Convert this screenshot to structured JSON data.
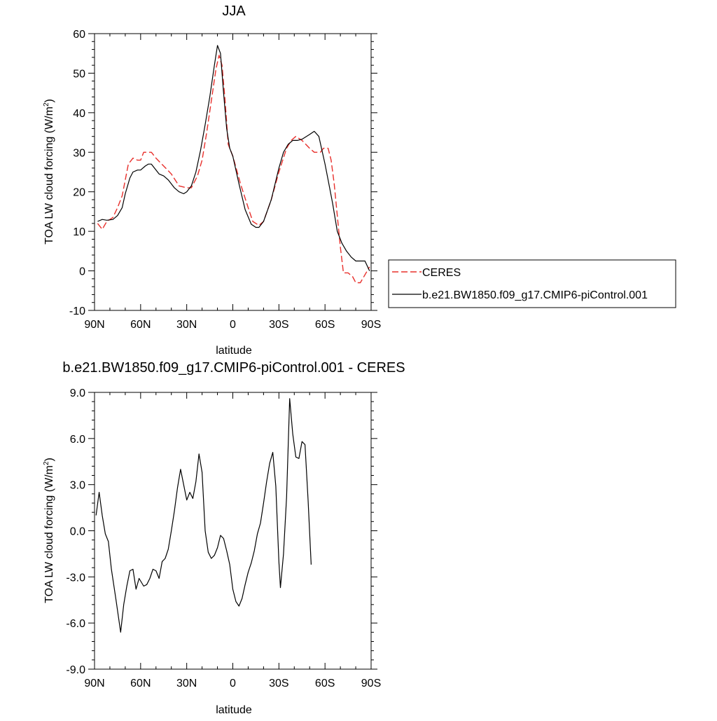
{
  "chart_data": [
    {
      "type": "line",
      "title": "JJA",
      "xlabel": "latitude",
      "ylabel": "TOA LW cloud forcing (W/m",
      "ylabel_sup": "2",
      "ylabel_end": ")",
      "xlim": [
        90,
        -90
      ],
      "ylim": [
        -10,
        60
      ],
      "x_ticks": [
        90,
        60,
        30,
        0,
        -30,
        -60,
        -90
      ],
      "x_tick_labels": [
        "90N",
        "60N",
        "30N",
        "0",
        "30S",
        "60S",
        "90S"
      ],
      "y_ticks": [
        -10,
        0,
        10,
        20,
        30,
        40,
        50,
        60
      ],
      "y_tick_labels": [
        "-10",
        "0",
        "10",
        "20",
        "30",
        "40",
        "50",
        "60"
      ],
      "legend_position": "right",
      "series": [
        {
          "name": "CERES",
          "color": "#e8302c",
          "dash": "dashed",
          "points": [
            [
              88,
              12
            ],
            [
              85,
              10.5
            ],
            [
              82,
              12.5
            ],
            [
              78,
              13.5
            ],
            [
              75,
              16
            ],
            [
              72,
              19
            ],
            [
              68,
              27
            ],
            [
              65,
              28.5
            ],
            [
              62,
              28
            ],
            [
              60,
              28
            ],
            [
              58,
              30
            ],
            [
              55,
              30
            ],
            [
              53,
              30
            ],
            [
              50,
              28.5
            ],
            [
              45,
              26.5
            ],
            [
              40,
              24.5
            ],
            [
              35,
              21.5
            ],
            [
              30,
              21
            ],
            [
              27,
              21
            ],
            [
              23,
              24
            ],
            [
              20,
              28
            ],
            [
              17,
              35
            ],
            [
              14,
              43
            ],
            [
              11,
              51
            ],
            [
              9,
              54.5
            ],
            [
              7,
              52
            ],
            [
              5,
              43
            ],
            [
              3,
              32
            ],
            [
              0,
              29
            ],
            [
              -5,
              22
            ],
            [
              -10,
              16
            ],
            [
              -13,
              12.5
            ],
            [
              -17,
              11.5
            ],
            [
              -20,
              12.5
            ],
            [
              -25,
              18
            ],
            [
              -30,
              25
            ],
            [
              -35,
              31
            ],
            [
              -38,
              33
            ],
            [
              -41,
              34
            ],
            [
              -45,
              33
            ],
            [
              -50,
              31
            ],
            [
              -53,
              30
            ],
            [
              -57,
              30
            ],
            [
              -59,
              31
            ],
            [
              -62,
              31
            ],
            [
              -64,
              28
            ],
            [
              -66,
              22
            ],
            [
              -68,
              14
            ],
            [
              -70,
              6
            ],
            [
              -72,
              -0.5
            ],
            [
              -75,
              -0.5
            ],
            [
              -78,
              -1.5
            ],
            [
              -80,
              -3
            ],
            [
              -83,
              -3
            ],
            [
              -86,
              -1
            ],
            [
              -89,
              1
            ]
          ]
        },
        {
          "name": "b.e21.BW1850.f09_g17.CMIP6-piControl.001",
          "color": "#000000",
          "dash": "solid",
          "points": [
            [
              88,
              12.5
            ],
            [
              85,
              13
            ],
            [
              82,
              12.8
            ],
            [
              78,
              13
            ],
            [
              75,
              14
            ],
            [
              72,
              16
            ],
            [
              70,
              19.5
            ],
            [
              67,
              23.5
            ],
            [
              65,
              25
            ],
            [
              62,
              25.5
            ],
            [
              60,
              25.5
            ],
            [
              57,
              26.5
            ],
            [
              55,
              27
            ],
            [
              53,
              27
            ],
            [
              51,
              26
            ],
            [
              48,
              24.5
            ],
            [
              45,
              24
            ],
            [
              42,
              23
            ],
            [
              38,
              21
            ],
            [
              35,
              20
            ],
            [
              32,
              19.5
            ],
            [
              30,
              20
            ],
            [
              27,
              21.5
            ],
            [
              24,
              25
            ],
            [
              21,
              30.5
            ],
            [
              18,
              37
            ],
            [
              15,
              44
            ],
            [
              12,
              52
            ],
            [
              10,
              57
            ],
            [
              8,
              55
            ],
            [
              6,
              45
            ],
            [
              4,
              36
            ],
            [
              2,
              31
            ],
            [
              0,
              29
            ],
            [
              -4,
              22
            ],
            [
              -8,
              15.5
            ],
            [
              -12,
              11.8
            ],
            [
              -15,
              11
            ],
            [
              -17,
              11
            ],
            [
              -20,
              12.5
            ],
            [
              -25,
              18
            ],
            [
              -30,
              26
            ],
            [
              -33,
              30
            ],
            [
              -36,
              32
            ],
            [
              -39,
              33
            ],
            [
              -42,
              33
            ],
            [
              -45,
              33.3
            ],
            [
              -50,
              34.5
            ],
            [
              -53,
              35.3
            ],
            [
              -56,
              34
            ],
            [
              -58,
              30.5
            ],
            [
              -60,
              27
            ],
            [
              -62,
              23
            ],
            [
              -65,
              17
            ],
            [
              -68,
              10
            ],
            [
              -71,
              7
            ],
            [
              -74,
              5
            ],
            [
              -77,
              3.5
            ],
            [
              -80,
              2.5
            ],
            [
              -83,
              2.5
            ],
            [
              -86,
              2.5
            ],
            [
              -89,
              0
            ]
          ]
        }
      ]
    },
    {
      "type": "line",
      "title": "b.e21.BW1850.f09_g17.CMIP6-piControl.001 - CERES",
      "xlabel": "latitude",
      "ylabel": "TOA LW cloud forcing (W/m",
      "ylabel_sup": "2",
      "ylabel_end": ")",
      "xlim": [
        90,
        -90
      ],
      "ylim": [
        -9,
        9
      ],
      "x_ticks": [
        90,
        60,
        30,
        0,
        -30,
        -60,
        -90
      ],
      "x_tick_labels": [
        "90N",
        "60N",
        "30N",
        "0",
        "30S",
        "60S",
        "90S"
      ],
      "y_ticks": [
        -9,
        -6,
        -3,
        0,
        3,
        6,
        9
      ],
      "y_tick_labels": [
        "-9.0",
        "-6.0",
        "-3.0",
        "0.0",
        "3.0",
        "6.0",
        "9.0"
      ],
      "series": [
        {
          "color": "#000000",
          "dash": "solid",
          "points": [
            [
              89,
              1
            ],
            [
              87,
              2.5
            ],
            [
              85,
              1
            ],
            [
              83,
              -0.2
            ],
            [
              81,
              -0.7
            ],
            [
              79,
              -2.5
            ],
            [
              76,
              -4.5
            ],
            [
              73,
              -6.6
            ],
            [
              71,
              -4.8
            ],
            [
              69,
              -3.6
            ],
            [
              67,
              -2.6
            ],
            [
              65,
              -2.5
            ],
            [
              63,
              -3.8
            ],
            [
              61,
              -3.1
            ],
            [
              58,
              -3.6
            ],
            [
              56,
              -3.5
            ],
            [
              54,
              -3.1
            ],
            [
              52,
              -2.5
            ],
            [
              50,
              -2.6
            ],
            [
              48,
              -3.1
            ],
            [
              46,
              -2
            ],
            [
              44,
              -1.8
            ],
            [
              42,
              -1.2
            ],
            [
              40,
              0
            ],
            [
              38,
              1.3
            ],
            [
              36,
              2.8
            ],
            [
              34,
              4
            ],
            [
              32,
              3
            ],
            [
              30,
              2
            ],
            [
              28,
              2.5
            ],
            [
              26,
              2.1
            ],
            [
              24,
              3.2
            ],
            [
              22,
              5
            ],
            [
              20,
              3.8
            ],
            [
              18,
              0
            ],
            [
              16,
              -1.4
            ],
            [
              14,
              -1.8
            ],
            [
              12,
              -1.6
            ],
            [
              10,
              -1.1
            ],
            [
              8,
              -0.3
            ],
            [
              6,
              -0.5
            ],
            [
              4,
              -1.3
            ],
            [
              2,
              -2.2
            ],
            [
              0,
              -3.8
            ],
            [
              -2,
              -4.6
            ],
            [
              -4,
              -4.9
            ],
            [
              -6,
              -4.4
            ],
            [
              -8,
              -3.5
            ],
            [
              -10,
              -2.7
            ],
            [
              -12,
              -2.1
            ],
            [
              -14,
              -1.3
            ],
            [
              -16,
              -0.2
            ],
            [
              -18,
              0.5
            ],
            [
              -20,
              1.8
            ],
            [
              -22,
              3.2
            ],
            [
              -24,
              4.4
            ],
            [
              -26,
              5.1
            ],
            [
              -28,
              2.9
            ],
            [
              -30,
              -2
            ],
            [
              -31,
              -3.7
            ],
            [
              -33,
              -1.5
            ],
            [
              -35,
              2.2
            ],
            [
              -37,
              8.6
            ],
            [
              -39,
              6.3
            ],
            [
              -41,
              4.8
            ],
            [
              -43,
              4.7
            ],
            [
              -45,
              5.8
            ],
            [
              -47,
              5.6
            ],
            [
              -49,
              2
            ],
            [
              -51,
              -2.2
            ]
          ]
        }
      ]
    }
  ]
}
